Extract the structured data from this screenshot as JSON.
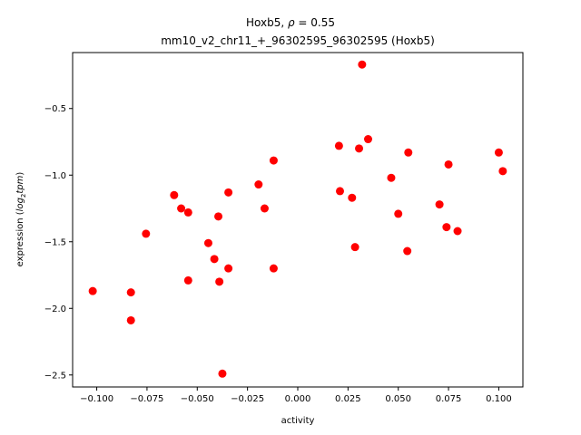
{
  "chart_data": {
    "type": "scatter",
    "title_line1": "Hoxb5, ",
    "title_rho_symbol": "ρ",
    "title_rho_value": " = 0.55",
    "title_line2": "mm10_v2_chr11_+_96302595_96302595 (Hoxb5)",
    "xlabel": "activity",
    "ylabel_prefix": "expression (",
    "ylabel_log": "log",
    "ylabel_sub": "2",
    "ylabel_tpm": "tpm",
    "ylabel_suffix": ")",
    "xlim": [
      -0.112,
      0.112
    ],
    "ylim": [
      -2.59,
      -0.08
    ],
    "xticks": [
      -0.1,
      -0.075,
      -0.05,
      -0.025,
      0.0,
      0.025,
      0.05,
      0.075,
      0.1
    ],
    "xtick_labels": [
      "−0.100",
      "−0.075",
      "−0.050",
      "−0.025",
      "0.000",
      "0.025",
      "0.050",
      "0.075",
      "0.100"
    ],
    "yticks": [
      -2.5,
      -2.0,
      -1.5,
      -1.0,
      -0.5
    ],
    "ytick_labels": [
      "−2.5",
      "−2.0",
      "−1.5",
      "−1.0",
      "−0.5"
    ],
    "marker_color": "#ff0000",
    "grid": false,
    "points": [
      {
        "x": -0.102,
        "y": -1.87
      },
      {
        "x": -0.083,
        "y": -1.88
      },
      {
        "x": -0.083,
        "y": -2.09
      },
      {
        "x": -0.0755,
        "y": -1.44
      },
      {
        "x": -0.0615,
        "y": -1.15
      },
      {
        "x": -0.058,
        "y": -1.25
      },
      {
        "x": -0.0545,
        "y": -1.28
      },
      {
        "x": -0.0545,
        "y": -1.79
      },
      {
        "x": -0.0445,
        "y": -1.51
      },
      {
        "x": -0.0415,
        "y": -1.63
      },
      {
        "x": -0.0395,
        "y": -1.31
      },
      {
        "x": -0.039,
        "y": -1.8
      },
      {
        "x": -0.0375,
        "y": -2.49
      },
      {
        "x": -0.0345,
        "y": -1.13
      },
      {
        "x": -0.0345,
        "y": -1.7
      },
      {
        "x": -0.0195,
        "y": -1.07
      },
      {
        "x": -0.0165,
        "y": -1.25
      },
      {
        "x": -0.012,
        "y": -0.89
      },
      {
        "x": -0.012,
        "y": -1.7
      },
      {
        "x": 0.0205,
        "y": -0.78
      },
      {
        "x": 0.021,
        "y": -1.12
      },
      {
        "x": 0.027,
        "y": -1.17
      },
      {
        "x": 0.0285,
        "y": -1.54
      },
      {
        "x": 0.0305,
        "y": -0.8
      },
      {
        "x": 0.032,
        "y": -0.17
      },
      {
        "x": 0.035,
        "y": -0.73
      },
      {
        "x": 0.0465,
        "y": -1.02
      },
      {
        "x": 0.05,
        "y": -1.29
      },
      {
        "x": 0.0545,
        "y": -1.57
      },
      {
        "x": 0.055,
        "y": -0.83
      },
      {
        "x": 0.0705,
        "y": -1.22
      },
      {
        "x": 0.074,
        "y": -1.39
      },
      {
        "x": 0.075,
        "y": -0.92
      },
      {
        "x": 0.0795,
        "y": -1.42
      },
      {
        "x": 0.1,
        "y": -0.83
      },
      {
        "x": 0.102,
        "y": -0.97
      }
    ]
  }
}
